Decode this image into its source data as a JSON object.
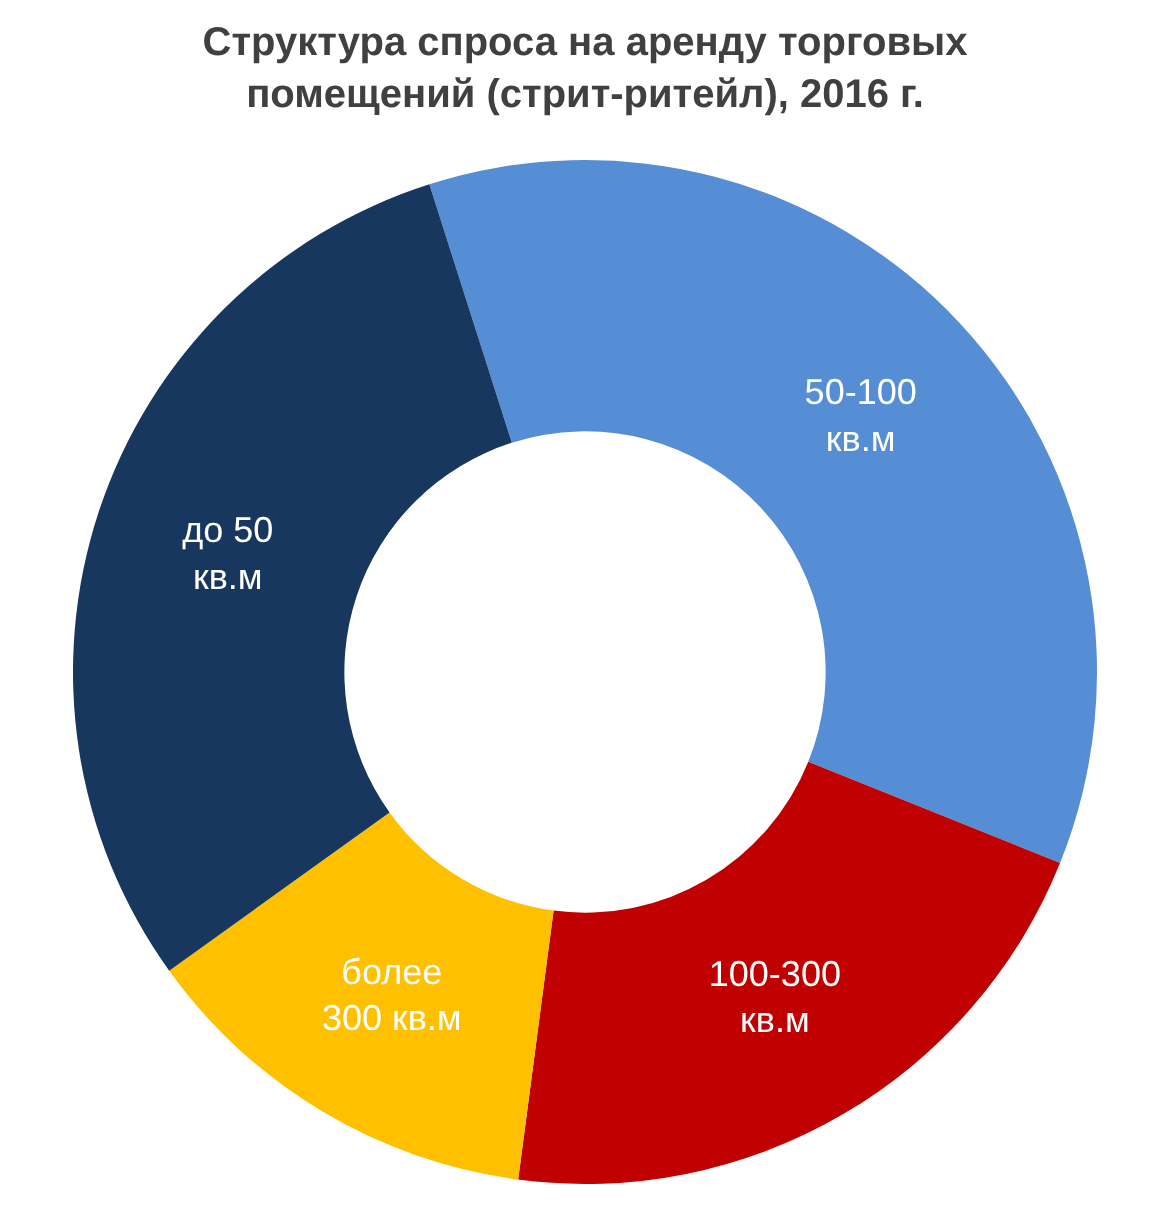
{
  "chart_data": {
    "type": "donut",
    "title": "Структура спроса на аренду торговых\nпомещений (стрит-ритейл), 2016 г.",
    "categories": [
      "50-100\nкв.м",
      "100-300\nкв.м",
      "более\n300 кв.м",
      "до 50\nкв.м"
    ],
    "values": [
      36,
      21,
      13,
      30
    ],
    "colors": [
      "#558ed5",
      "#c00000",
      "#ffc000",
      "#17375e"
    ],
    "legend": false
  }
}
